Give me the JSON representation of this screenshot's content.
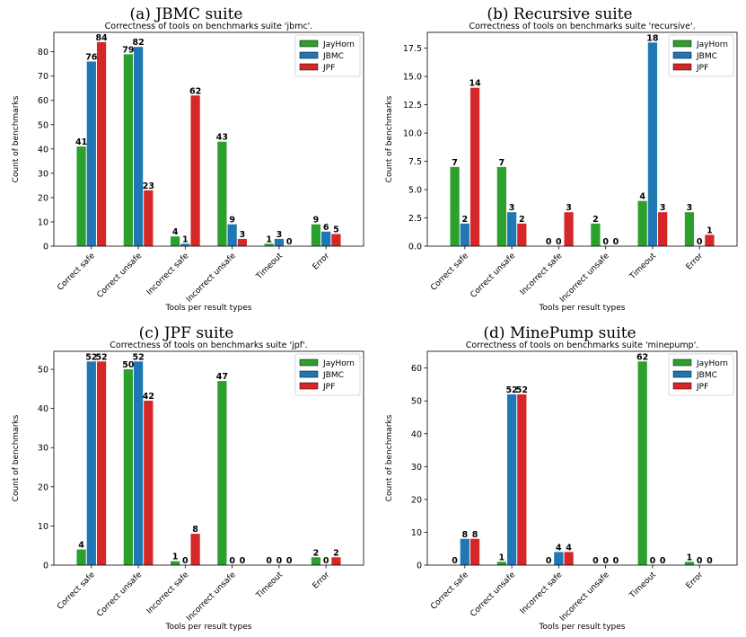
{
  "colors": {
    "JayHorn": "#2ca02c",
    "JBMC": "#1f77b4",
    "JPF": "#d62728"
  },
  "chart_data": [
    {
      "caption": "(a) JBMC suite",
      "type": "bar",
      "title": "Correctness of tools on benchmarks suite 'jbmc'.",
      "xlabel": "Tools per result types",
      "ylabel": "Count of benchmarks",
      "categories": [
        "Correct safe",
        "Correct unsafe",
        "Incorrect safe",
        "Incorrect unsafe",
        "Timeout",
        "Error"
      ],
      "series": [
        {
          "name": "JayHorn",
          "values": [
            41,
            79,
            4,
            43,
            1,
            9
          ]
        },
        {
          "name": "JBMC",
          "values": [
            76,
            82,
            1,
            9,
            3,
            6
          ]
        },
        {
          "name": "JPF",
          "values": [
            84,
            23,
            62,
            3,
            0,
            5
          ]
        }
      ],
      "ylim": [
        0,
        88
      ],
      "yticks": [
        0,
        10,
        20,
        30,
        40,
        50,
        60,
        70,
        80
      ],
      "tick_labels": [
        "0",
        "10",
        "20",
        "30",
        "40",
        "50",
        "60",
        "70",
        "80"
      ],
      "legend": "top-right",
      "grid": false
    },
    {
      "caption": "(b) Recursive suite",
      "type": "bar",
      "title": "Correctness of tools on benchmarks suite 'recursive'.",
      "xlabel": "Tools per result types",
      "ylabel": "Count of benchmarks",
      "categories": [
        "Correct safe",
        "Correct unsafe",
        "Incorrect safe",
        "Incorrect unsafe",
        "Timeout",
        "Error"
      ],
      "series": [
        {
          "name": "JayHorn",
          "values": [
            7,
            7,
            0,
            2,
            4,
            3
          ]
        },
        {
          "name": "JBMC",
          "values": [
            2,
            3,
            0,
            0,
            18,
            0
          ]
        },
        {
          "name": "JPF",
          "values": [
            14,
            2,
            3,
            0,
            3,
            1
          ]
        }
      ],
      "ylim": [
        0,
        18.9
      ],
      "yticks": [
        0,
        2.5,
        5,
        7.5,
        10,
        12.5,
        15,
        17.5
      ],
      "tick_labels": [
        "0.0",
        "2.5",
        "5.0",
        "7.5",
        "10.0",
        "12.5",
        "15.0",
        "17.5"
      ],
      "legend": "top-right",
      "grid": false
    },
    {
      "caption": "(c) JPF suite",
      "type": "bar",
      "title": "Correctness of tools on benchmarks suite 'jpf'.",
      "xlabel": "Tools per result types",
      "ylabel": "Count of benchmarks",
      "categories": [
        "Correct safe",
        "Correct unsafe",
        "Incorrect safe",
        "Incorrect unsafe",
        "Timeout",
        "Error"
      ],
      "series": [
        {
          "name": "JayHorn",
          "values": [
            4,
            50,
            1,
            47,
            0,
            2
          ]
        },
        {
          "name": "JBMC",
          "values": [
            52,
            52,
            0,
            0,
            0,
            0
          ]
        },
        {
          "name": "JPF",
          "values": [
            52,
            42,
            8,
            0,
            0,
            2
          ]
        }
      ],
      "ylim": [
        0,
        54.6
      ],
      "yticks": [
        0,
        10,
        20,
        30,
        40,
        50
      ],
      "tick_labels": [
        "0",
        "10",
        "20",
        "30",
        "40",
        "50"
      ],
      "legend": "top-right",
      "grid": false
    },
    {
      "caption": "(d) MinePump suite",
      "type": "bar",
      "title": "Correctness of tools on benchmarks suite 'minepump'.",
      "xlabel": "Tools per result types",
      "ylabel": "Count of benchmarks",
      "categories": [
        "Correct safe",
        "Correct unsafe",
        "Incorrect safe",
        "Incorrect unsafe",
        "Timeout",
        "Error"
      ],
      "series": [
        {
          "name": "JayHorn",
          "values": [
            0,
            1,
            0,
            0,
            62,
            1
          ]
        },
        {
          "name": "JBMC",
          "values": [
            8,
            52,
            4,
            0,
            0,
            0
          ]
        },
        {
          "name": "JPF",
          "values": [
            8,
            52,
            4,
            0,
            0,
            0
          ]
        }
      ],
      "ylim": [
        0,
        65.1
      ],
      "yticks": [
        0,
        10,
        20,
        30,
        40,
        50,
        60
      ],
      "tick_labels": [
        "0",
        "10",
        "20",
        "30",
        "40",
        "50",
        "60"
      ],
      "legend": "top-right",
      "grid": false
    }
  ]
}
